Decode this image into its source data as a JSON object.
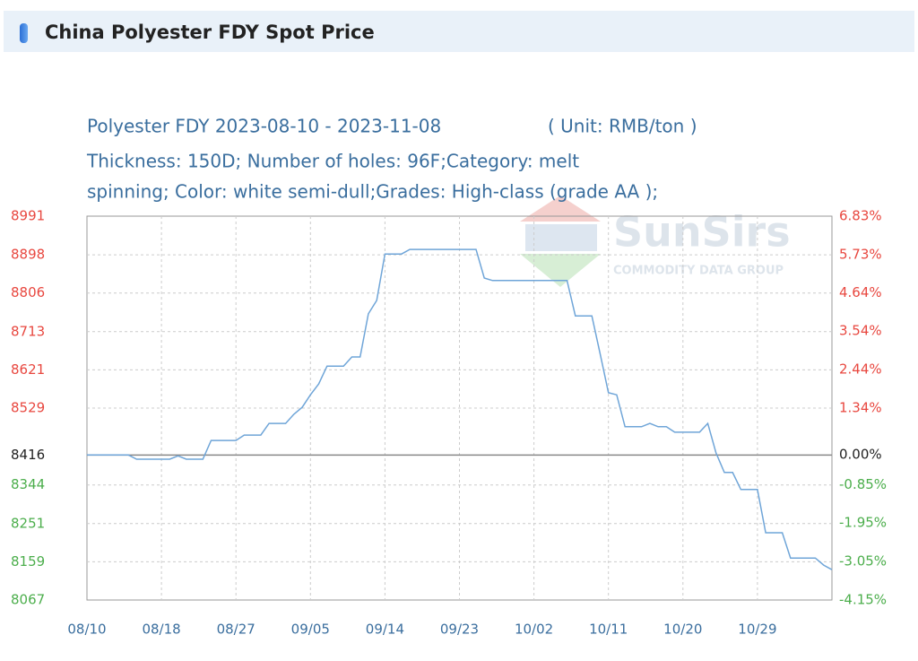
{
  "header": {
    "title": "China Polyester FDY Spot Price"
  },
  "chart_data": {
    "type": "line",
    "title": "Polyester FDY 2023-08-10 - 2023-11-08",
    "unit": "( Unit: RMB/ton )",
    "subtitle": [
      "Thickness: 150D; Number of holes: 96F;Category: melt",
      "spinning; Color: white semi-dull;Grades: High-class (grade AA );"
    ],
    "watermark": {
      "name": "SunSirs",
      "tagline": "COMMODITY DATA GROUP"
    },
    "categories": [
      "08/10",
      null,
      null,
      null,
      null,
      null,
      null,
      null,
      null,
      "08/18",
      null,
      null,
      null,
      null,
      null,
      null,
      null,
      null,
      "08/27",
      null,
      null,
      null,
      null,
      null,
      null,
      null,
      null,
      "09/05",
      null,
      null,
      null,
      null,
      null,
      null,
      null,
      null,
      "09/14",
      null,
      null,
      null,
      null,
      null,
      null,
      null,
      null,
      "09/23",
      null,
      null,
      null,
      null,
      null,
      null,
      null,
      null,
      "10/02",
      null,
      null,
      null,
      null,
      null,
      null,
      null,
      null,
      "10/11",
      null,
      null,
      null,
      null,
      null,
      null,
      null,
      null,
      "10/20",
      null,
      null,
      null,
      null,
      null,
      null,
      null,
      null,
      "10/29",
      null,
      null,
      null,
      null,
      null,
      null,
      null,
      null,
      null
    ],
    "values": [
      8416,
      8416,
      8416,
      8416,
      8416,
      8416,
      8406,
      8406,
      8406,
      8406,
      8406,
      8414,
      8406,
      8406,
      8406,
      8451,
      8451,
      8451,
      8451,
      8464,
      8464,
      8464,
      8492,
      8492,
      8492,
      8514,
      8531,
      8561,
      8587,
      8630,
      8630,
      8630,
      8652,
      8652,
      8756,
      8788,
      8900,
      8900,
      8900,
      8911,
      8911,
      8911,
      8911,
      8911,
      8911,
      8911,
      8911,
      8911,
      8842,
      8836,
      8836,
      8836,
      8836,
      8836,
      8836,
      8836,
      8836,
      8836,
      8836,
      8751,
      8751,
      8751,
      8659,
      8566,
      8561,
      8484,
      8484,
      8484,
      8492,
      8484,
      8484,
      8471,
      8471,
      8471,
      8471,
      8492,
      8421,
      8374,
      8374,
      8333,
      8333,
      8333,
      8229,
      8229,
      8229,
      8168,
      8168,
      8168,
      8168,
      8151,
      8140
    ],
    "color": "#6fa5d8",
    "ylim": [
      8067,
      8991
    ],
    "yticks": [
      8991,
      8898,
      8806,
      8713,
      8621,
      8529,
      8416,
      8344,
      8251,
      8159,
      8067
    ],
    "y2lim": [
      -4.15,
      6.83
    ],
    "y2ticks": [
      {
        "value": 6.83,
        "label": "6.83%"
      },
      {
        "value": 5.73,
        "label": "5.73%"
      },
      {
        "value": 4.64,
        "label": "4.64%"
      },
      {
        "value": 3.54,
        "label": "3.54%"
      },
      {
        "value": 2.44,
        "label": "2.44%"
      },
      {
        "value": 1.34,
        "label": "1.34%"
      },
      {
        "value": 0,
        "label": "0.00%"
      },
      {
        "value": -0.85,
        "label": "-0.85%"
      },
      {
        "value": -1.95,
        "label": "-1.95%"
      },
      {
        "value": -3.05,
        "label": "-3.05%"
      },
      {
        "value": -4.15,
        "label": "-4.15%"
      }
    ],
    "reference_line": 8416,
    "up_color": "#e8473f",
    "down_color": "#4cae4c",
    "reference_color": "#222222",
    "grid": true
  }
}
